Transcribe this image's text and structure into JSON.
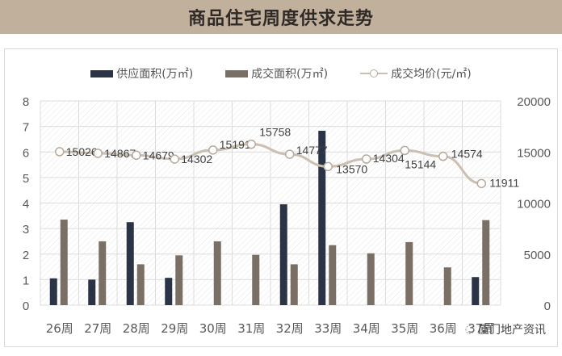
{
  "header": {
    "title": "商品住宅周度供求走势"
  },
  "legend": [
    {
      "label": "供应面积(万㎡)",
      "color": "#2b3447",
      "type": "bar"
    },
    {
      "label": "成交面积(万㎡)",
      "color": "#7a6f64",
      "type": "bar"
    },
    {
      "label": "成交均价(元/㎡)",
      "color": "#cbbfb1",
      "type": "line"
    }
  ],
  "watermark": {
    "text": "厦门地产资讯",
    "icon": "wechat-icon"
  },
  "chart_data": {
    "type": "bar",
    "title": "商品住宅周度供求走势",
    "xlabel": "",
    "ylabel": "",
    "categories": [
      "26周",
      "27周",
      "28周",
      "29周",
      "30周",
      "31周",
      "32周",
      "33周",
      "34周",
      "35周",
      "36周",
      "37周"
    ],
    "series": [
      {
        "name": "供应面积(万㎡)",
        "type": "bar",
        "axis": "left",
        "color": "#2b3447",
        "values": [
          1.05,
          1.0,
          3.25,
          1.07,
          0,
          0,
          3.95,
          6.83,
          0,
          0,
          0,
          1.1
        ]
      },
      {
        "name": "成交面积(万㎡)",
        "type": "bar",
        "axis": "left",
        "color": "#7a6f64",
        "values": [
          3.35,
          2.5,
          1.6,
          1.95,
          2.5,
          1.97,
          1.6,
          2.35,
          2.03,
          2.47,
          1.48,
          3.33
        ]
      },
      {
        "name": "成交均价(元/㎡)",
        "type": "line",
        "axis": "right",
        "color": "#cbbfb1",
        "values": [
          15026,
          14867,
          14679,
          14302,
          15191,
          15758,
          14777,
          13570,
          14304,
          15144,
          14574,
          11911
        ],
        "labels": [
          "15026",
          "14867",
          "14679",
          "14302",
          "15191",
          "15758",
          "14777",
          "13570",
          "14304",
          "15144",
          "14574",
          "11911"
        ]
      }
    ],
    "left_axis": {
      "ticks": [
        "0",
        "1",
        "2",
        "3",
        "4",
        "5",
        "6",
        "7",
        "8"
      ],
      "ylim": [
        0,
        8
      ]
    },
    "right_axis": {
      "ticks": [
        "0",
        "5000",
        "10000",
        "15000",
        "20000"
      ],
      "ylim": [
        0,
        20000
      ]
    },
    "grid": true,
    "legend_position": "top"
  }
}
